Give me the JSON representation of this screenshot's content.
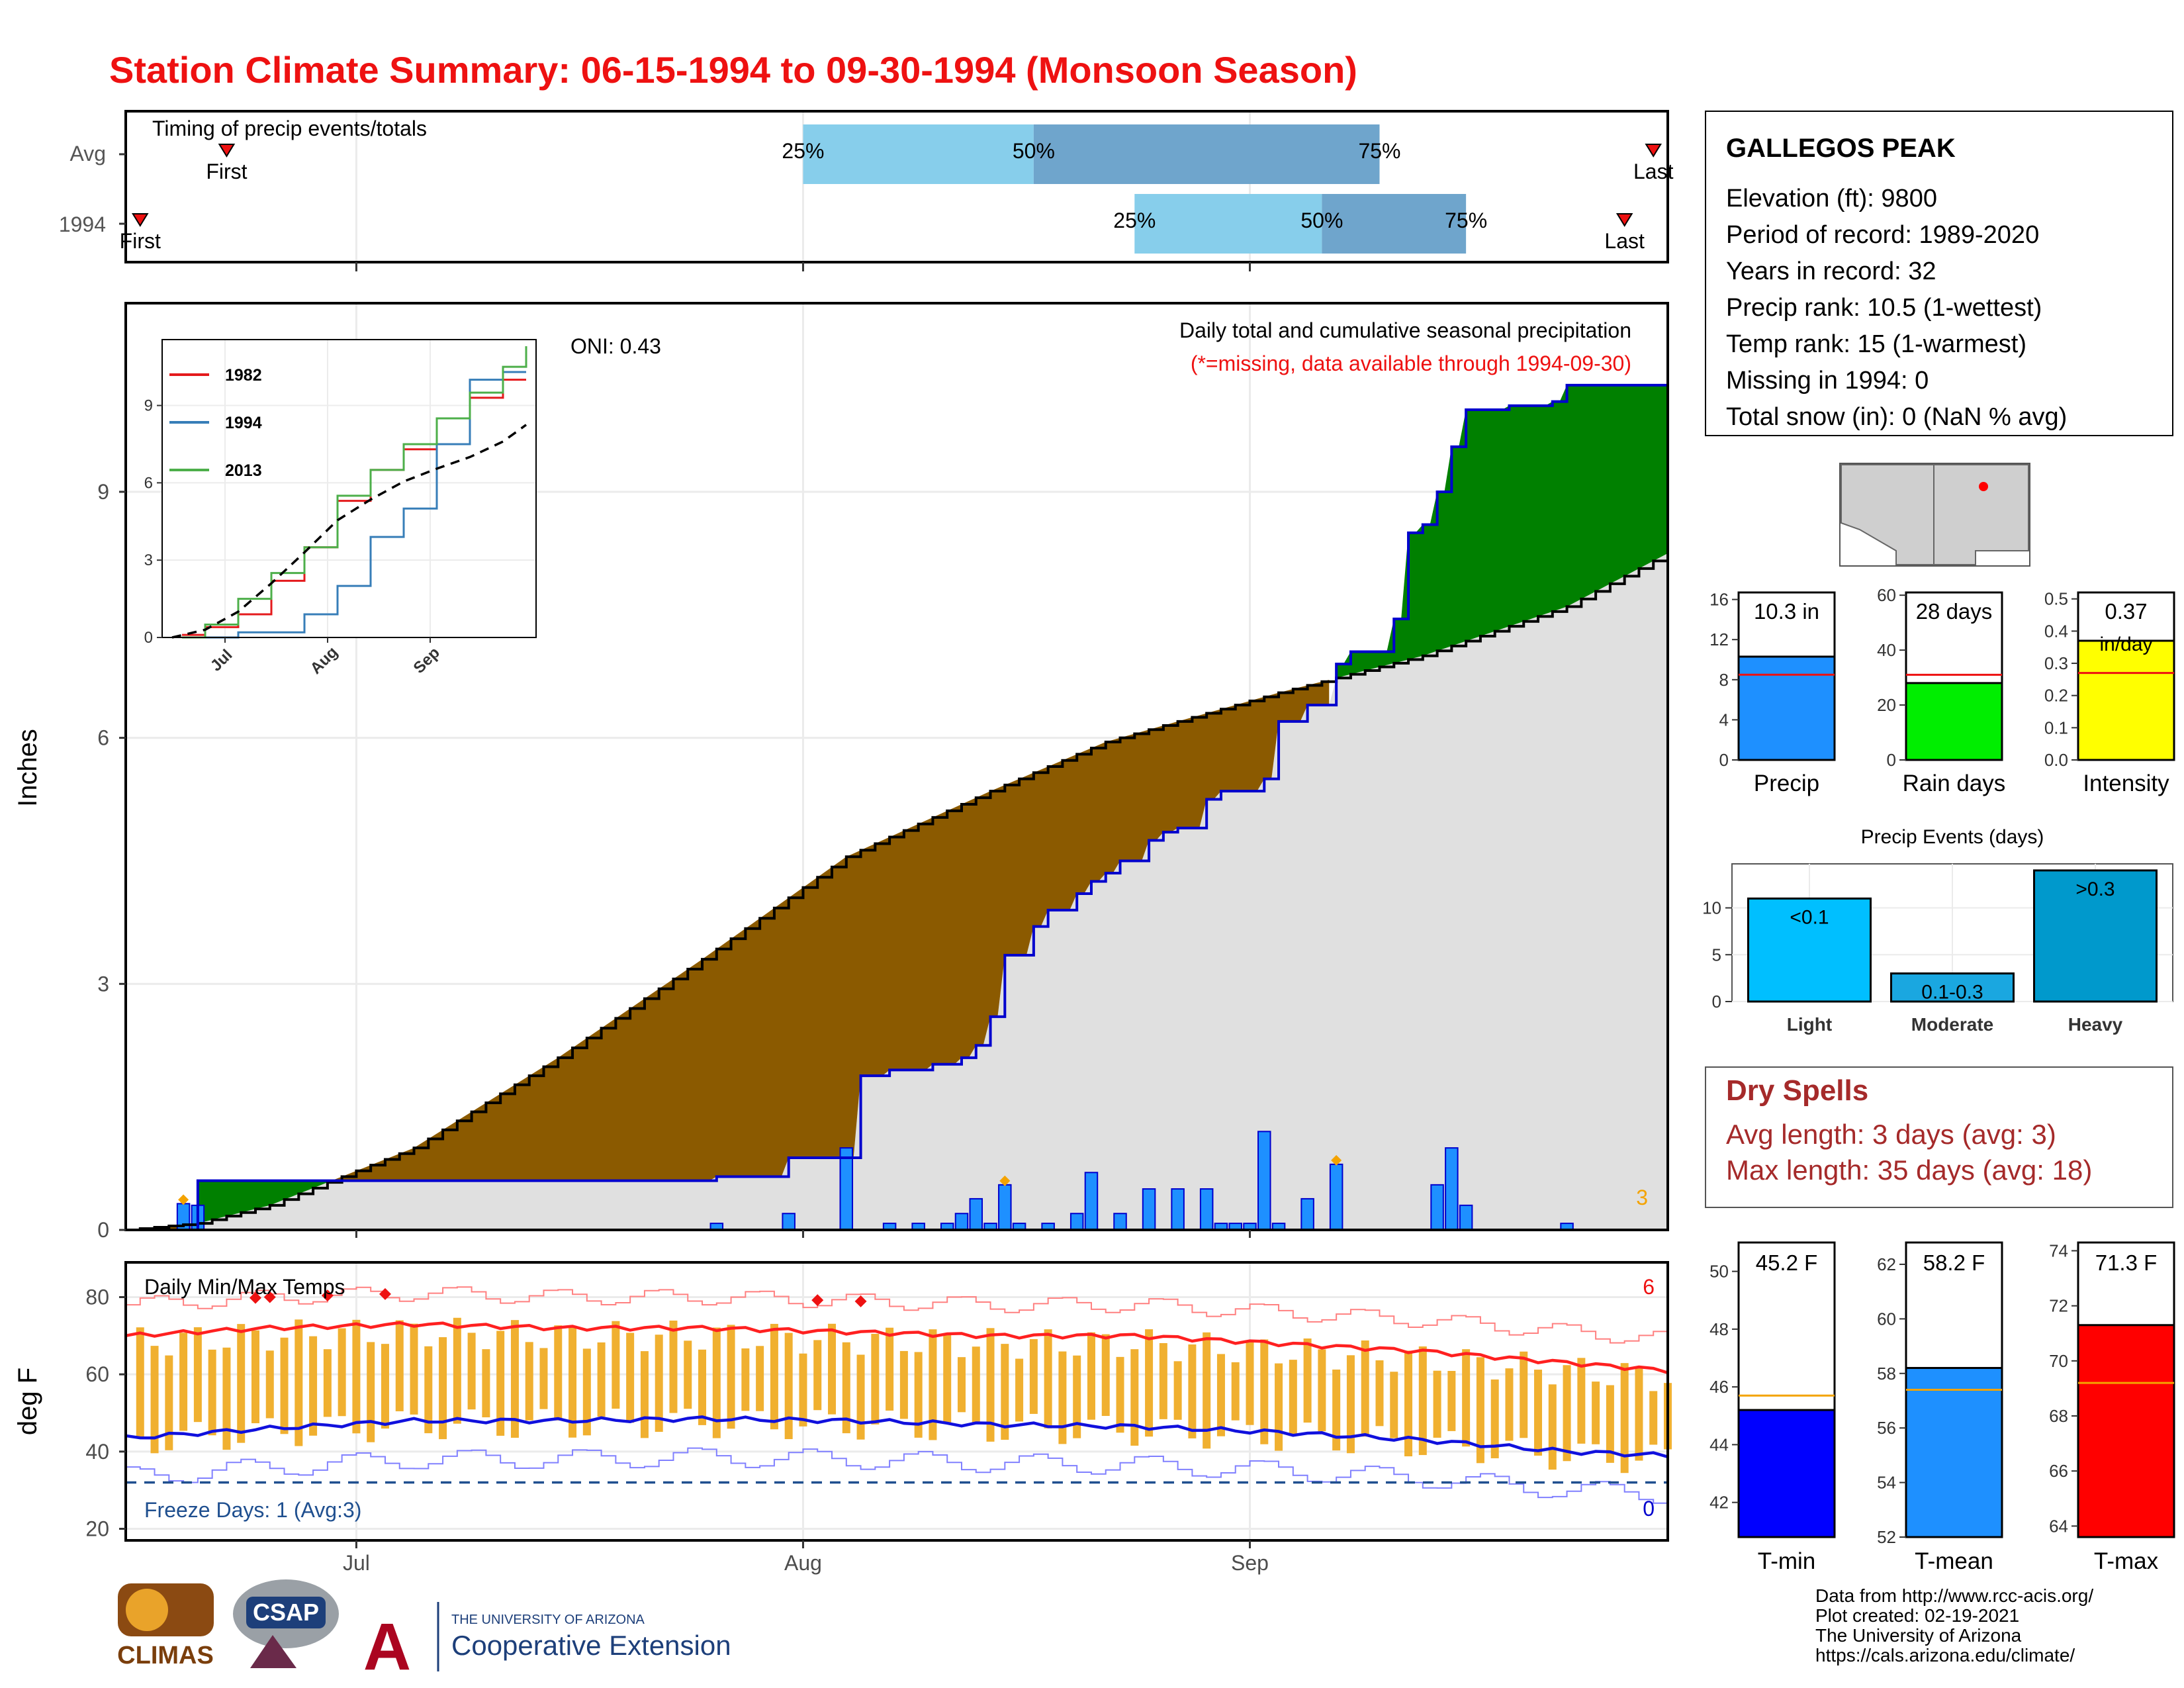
{
  "title": "Station Climate Summary: 06-15-1994 to 09-30-1994 (Monsoon Season)",
  "colors": {
    "title_red": "#ee1111",
    "light_blue": "#87ceeb",
    "mid_blue": "#6fa5cc",
    "brown": "#8b5a00",
    "green": "#008000",
    "gray_fill": "#e0e0e0",
    "blue_bar": "#1e90ff",
    "blue_line": "#0000cd",
    "orange": "#f4a300",
    "tmax_red": "#ff2020",
    "tmin_blue": "#1010dd",
    "dark_red": "#a52a2a"
  },
  "timing": {
    "label": "Timing of precip events/totals",
    "rows": [
      {
        "name": "Avg",
        "first_label": "First",
        "last_label": "Last",
        "first_day": 7,
        "last_day": 106,
        "p25_day": 47,
        "p50_day": 63,
        "p75_day": 87,
        "p25_label": "25%",
        "p50_label": "50%",
        "p75_label": "75%"
      },
      {
        "name": "1994",
        "first_label": "First",
        "last_label": "Last",
        "first_day": 1,
        "last_day": 104,
        "p25_day": 70,
        "p50_day": 83,
        "p75_day": 93,
        "p25_label": "25%",
        "p50_label": "50%",
        "p75_label": "75%"
      }
    ]
  },
  "main": {
    "title": "Daily total and cumulative seasonal precipitation",
    "subtitle": "(*=missing, data available through 1994-09-30)",
    "oni": "ONI: 0.43",
    "ylabel": "Inches",
    "yticks": [
      "0",
      "3",
      "6",
      "9"
    ],
    "ytick_values": [
      0,
      3,
      6,
      9
    ],
    "count_label": "3"
  },
  "x_ticks": [
    {
      "label": "Jul",
      "day": 16
    },
    {
      "label": "Aug",
      "day": 47
    },
    {
      "label": "Sep",
      "day": 78
    }
  ],
  "inset": {
    "yticks": [
      "0",
      "3",
      "6",
      "9"
    ],
    "xticks": [
      "Jul",
      "Aug",
      "Sep"
    ],
    "legend": [
      {
        "name": "1982",
        "color": "#e41a1c"
      },
      {
        "name": "1994",
        "color": "#377eb8"
      },
      {
        "name": "2013",
        "color": "#4daf4a"
      }
    ]
  },
  "temps": {
    "label": "Daily Min/Max Temps",
    "ylabel": "deg F",
    "yticks": [
      "20",
      "40",
      "60",
      "80"
    ],
    "freeze_label": "Freeze Days: 1 (Avg:3)",
    "max_count": "6",
    "min_count": "0"
  },
  "station": {
    "name": "GALLEGOS PEAK",
    "lines": [
      "Elevation (ft): 9800",
      "Period of record: 1989-2020",
      "Years in record: 32",
      "Precip rank: 10.5 (1-wettest)",
      "Temp rank: 15 (1-warmest)",
      "Missing in 1994: 0",
      "Total snow (in): 0 (NaN % avg)"
    ]
  },
  "mini_bars": [
    {
      "label": "Precip",
      "value_text": "10.3 in",
      "unit_text": "",
      "value": 10.3,
      "avg": 8.5,
      "ymax": 16.7,
      "ticks": [
        "0",
        "4",
        "8",
        "12",
        "16"
      ],
      "tick_values": [
        0,
        4,
        8,
        12,
        16
      ],
      "color": "#1e90ff"
    },
    {
      "label": "Rain days",
      "value_text": "28 days",
      "unit_text": "",
      "value": 28,
      "avg": 31,
      "ymax": 61,
      "ticks": [
        "0",
        "20",
        "40",
        "60"
      ],
      "tick_values": [
        0,
        20,
        40,
        60
      ],
      "color": "#00ee00"
    },
    {
      "label": "Intensity",
      "value_text": "0.37",
      "unit_text": "in/day",
      "value": 0.37,
      "avg": 0.27,
      "ymax": 0.52,
      "ticks": [
        "0.0",
        "0.1",
        "0.2",
        "0.3",
        "0.4",
        "0.5"
      ],
      "tick_values": [
        0,
        0.1,
        0.2,
        0.3,
        0.4,
        0.5
      ],
      "color": "#ffff00"
    }
  ],
  "events": {
    "title": "Precip Events (days)",
    "ticks": [
      "0",
      "5",
      "10"
    ],
    "categories": [
      "Light",
      "Moderate",
      "Heavy"
    ],
    "inner_labels": [
      "<0.1",
      "0.1-0.3",
      ">0.3"
    ],
    "values": [
      11,
      3,
      14
    ],
    "colors": [
      "#00bfff",
      "#1aa7e0",
      "#0099cc"
    ]
  },
  "dry_spells": {
    "title": "Dry Spells",
    "avg_line": "Avg length: 3 days (avg: 3)",
    "max_line": "Max length: 35 days (avg: 18)"
  },
  "temp_bars": [
    {
      "label": "T-min",
      "value_text": "45.2 F",
      "value": 45.2,
      "avg": 45.7,
      "ymin": 40.8,
      "ymax": 51,
      "ticks": [
        "42",
        "44",
        "46",
        "48",
        "50"
      ],
      "tick_values": [
        42,
        44,
        46,
        48,
        50
      ],
      "color": "#0000ff"
    },
    {
      "label": "T-mean",
      "value_text": "58.2 F",
      "value": 58.2,
      "avg": 57.4,
      "ymin": 52,
      "ymax": 62.8,
      "ticks": [
        "52",
        "54",
        "56",
        "58",
        "60",
        "62"
      ],
      "tick_values": [
        52,
        54,
        56,
        58,
        60,
        62
      ],
      "color": "#1e90ff"
    },
    {
      "label": "T-max",
      "value_text": "71.3 F",
      "value": 71.3,
      "avg": 69.2,
      "ymin": 63.6,
      "ymax": 74.3,
      "ticks": [
        "64",
        "66",
        "68",
        "70",
        "72",
        "74"
      ],
      "tick_values": [
        64,
        66,
        68,
        70,
        72,
        74
      ],
      "color": "#ff0000"
    }
  ],
  "footer": {
    "lines": [
      "Data from http://www.rcc-acis.org/",
      "Plot created: 02-19-2021",
      "The University of Arizona",
      "https://cals.arizona.edu/climate/"
    ],
    "climas": "CLIMAS",
    "csap": "CSAP",
    "ua_small": "THE UNIVERSITY OF ARIZONA",
    "ua_big": "Cooperative Extension"
  },
  "chart_data": {
    "type": "area",
    "title": "Daily total and cumulative seasonal precipitation",
    "ylabel": "Inches",
    "ylim": [
      0,
      11.3
    ],
    "x_range_days": [
      0,
      107
    ],
    "daily_precip": [
      [
        4,
        0.32
      ],
      [
        5,
        0.3
      ],
      [
        41,
        0.08
      ],
      [
        46,
        0.2
      ],
      [
        50,
        1.0
      ],
      [
        53,
        0.08
      ],
      [
        55,
        0.08
      ],
      [
        57,
        0.08
      ],
      [
        58,
        0.2
      ],
      [
        59,
        0.38
      ],
      [
        60,
        0.08
      ],
      [
        61,
        0.55
      ],
      [
        62,
        0.08
      ],
      [
        64,
        0.08
      ],
      [
        66,
        0.2
      ],
      [
        67,
        0.7
      ],
      [
        69,
        0.2
      ],
      [
        71,
        0.5
      ],
      [
        73,
        0.5
      ],
      [
        75,
        0.5
      ],
      [
        76,
        0.08
      ],
      [
        77,
        0.08
      ],
      [
        78,
        0.08
      ],
      [
        79,
        1.2
      ],
      [
        80,
        0.08
      ],
      [
        82,
        0.38
      ],
      [
        84,
        0.8
      ],
      [
        91,
        0.55
      ],
      [
        92,
        1.0
      ],
      [
        93,
        0.3
      ],
      [
        100,
        0.08
      ]
    ],
    "cumulative_1994": [
      [
        0,
        0.0
      ],
      [
        4,
        0.0
      ],
      [
        5,
        0.6
      ],
      [
        40,
        0.6
      ],
      [
        41,
        0.65
      ],
      [
        45,
        0.65
      ],
      [
        46,
        0.88
      ],
      [
        50,
        0.88
      ],
      [
        51,
        1.88
      ],
      [
        53,
        1.95
      ],
      [
        56,
        2.02
      ],
      [
        58,
        2.1
      ],
      [
        59,
        2.25
      ],
      [
        60,
        2.6
      ],
      [
        61,
        3.35
      ],
      [
        63,
        3.7
      ],
      [
        64,
        3.9
      ],
      [
        66,
        4.1
      ],
      [
        67,
        4.25
      ],
      [
        68,
        4.35
      ],
      [
        69,
        4.5
      ],
      [
        71,
        4.75
      ],
      [
        72,
        4.85
      ],
      [
        73,
        4.9
      ],
      [
        75,
        5.25
      ],
      [
        76,
        5.35
      ],
      [
        79,
        5.5
      ],
      [
        80,
        6.2
      ],
      [
        82,
        6.4
      ],
      [
        84,
        6.9
      ],
      [
        85,
        7.05
      ],
      [
        88,
        7.45
      ],
      [
        89,
        8.5
      ],
      [
        90,
        8.6
      ],
      [
        91,
        9.0
      ],
      [
        92,
        9.55
      ],
      [
        93,
        10.0
      ],
      [
        96,
        10.05
      ],
      [
        99,
        10.1
      ],
      [
        100,
        10.3
      ],
      [
        107,
        10.3
      ]
    ],
    "cumulative_avg": [
      [
        0,
        0.0
      ],
      [
        5,
        0.08
      ],
      [
        10,
        0.3
      ],
      [
        20,
        1.0
      ],
      [
        30,
        2.1
      ],
      [
        40,
        3.3
      ],
      [
        50,
        4.55
      ],
      [
        60,
        5.35
      ],
      [
        68,
        5.95
      ],
      [
        76,
        6.35
      ],
      [
        77,
        6.4
      ],
      [
        78,
        6.45
      ],
      [
        80,
        6.55
      ],
      [
        90,
        7.0
      ],
      [
        100,
        7.6
      ],
      [
        107,
        8.25
      ]
    ],
    "inset_series": {
      "1982": [
        [
          3,
          0.1
        ],
        [
          10,
          0.4
        ],
        [
          20,
          0.9
        ],
        [
          30,
          2.2
        ],
        [
          40,
          3.5
        ],
        [
          50,
          5.3
        ],
        [
          60,
          6.5
        ],
        [
          70,
          7.3
        ],
        [
          80,
          8.5
        ],
        [
          90,
          9.3
        ],
        [
          100,
          10.0
        ],
        [
          107,
          10.0
        ]
      ],
      "1994": [
        [
          3,
          0.0
        ],
        [
          20,
          0.2
        ],
        [
          40,
          0.9
        ],
        [
          50,
          2.0
        ],
        [
          60,
          3.9
        ],
        [
          70,
          5.0
        ],
        [
          80,
          7.5
        ],
        [
          90,
          10.0
        ],
        [
          100,
          10.3
        ],
        [
          107,
          10.3
        ]
      ],
      "2013": [
        [
          3,
          0.0
        ],
        [
          10,
          0.5
        ],
        [
          20,
          1.5
        ],
        [
          30,
          2.5
        ],
        [
          40,
          3.5
        ],
        [
          50,
          5.5
        ],
        [
          60,
          6.5
        ],
        [
          70,
          7.5
        ],
        [
          80,
          8.5
        ],
        [
          90,
          9.5
        ],
        [
          100,
          10.5
        ],
        [
          107,
          11.3
        ]
      ],
      "average": [
        [
          0,
          0.0
        ],
        [
          10,
          0.3
        ],
        [
          20,
          1.0
        ],
        [
          30,
          2.1
        ],
        [
          40,
          3.3
        ],
        [
          50,
          4.55
        ],
        [
          60,
          5.35
        ],
        [
          70,
          6.05
        ],
        [
          80,
          6.55
        ],
        [
          90,
          7.0
        ],
        [
          100,
          7.6
        ],
        [
          107,
          8.25
        ]
      ]
    },
    "temps": {
      "tmax_avg": [
        [
          0,
          70
        ],
        [
          10,
          72
        ],
        [
          20,
          73
        ],
        [
          30,
          72
        ],
        [
          40,
          72
        ],
        [
          50,
          71
        ],
        [
          60,
          70
        ],
        [
          70,
          70
        ],
        [
          80,
          68
        ],
        [
          90,
          66
        ],
        [
          100,
          63
        ],
        [
          107,
          61
        ]
      ],
      "tmin_avg": [
        [
          0,
          43.5
        ],
        [
          10,
          46
        ],
        [
          20,
          48
        ],
        [
          30,
          48
        ],
        [
          40,
          48.5
        ],
        [
          50,
          48
        ],
        [
          60,
          47
        ],
        [
          70,
          46.5
        ],
        [
          80,
          45
        ],
        [
          90,
          43
        ],
        [
          100,
          40
        ],
        [
          107,
          39
        ]
      ],
      "freeze_threshold": 32
    }
  }
}
